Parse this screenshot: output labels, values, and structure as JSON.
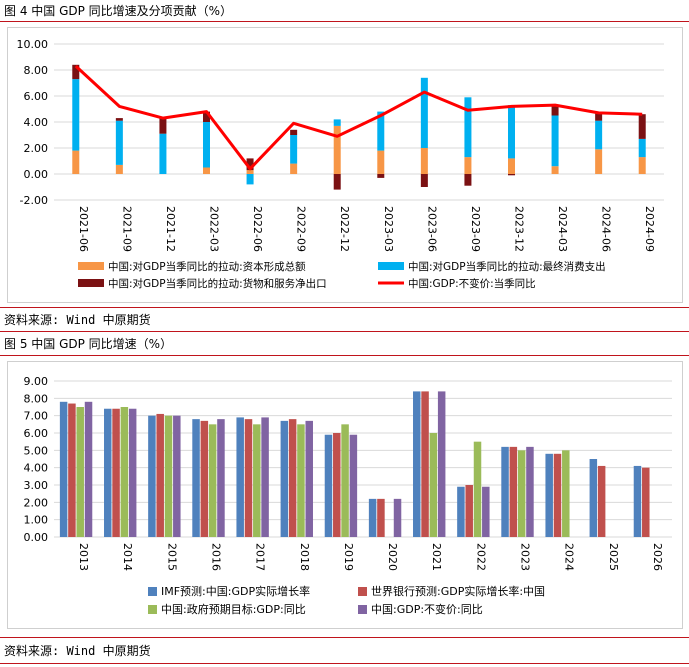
{
  "figure4": {
    "title": "图 4 中国 GDP 同比增速及分项贡献（%）",
    "source": "资料来源: Wind 中原期货"
  },
  "figure5": {
    "title": "图 5 中国 GDP 同比增速（%）",
    "source": "资料来源: Wind 中原期货"
  },
  "chart_data": [
    {
      "type": "bar",
      "stacked": true,
      "overlay_line": true,
      "title": "图 4 中国 GDP 同比增速及分项贡献（%）",
      "categories": [
        "2021-06",
        "2021-09",
        "2021-12",
        "2022-03",
        "2022-06",
        "2022-09",
        "2022-12",
        "2023-03",
        "2023-06",
        "2023-09",
        "2023-12",
        "2024-03",
        "2024-06",
        "2024-09"
      ],
      "ylim": [
        -2,
        10
      ],
      "yticks": [
        "-2.00",
        "0.00",
        "2.00",
        "4.00",
        "6.00",
        "8.00",
        "10.00"
      ],
      "grid": true,
      "legend_position": "bottom",
      "series": [
        {
          "name": "中国:对GDP当季同比的拉动:资本形成总额",
          "color": "#f79646",
          "kind": "bar",
          "values": [
            1.8,
            0.7,
            0.0,
            0.5,
            0.3,
            0.8,
            3.7,
            1.8,
            2.0,
            1.3,
            1.2,
            0.6,
            1.9,
            1.3
          ]
        },
        {
          "name": "中国:对GDP当季同比的拉动:最终消费支出",
          "color": "#00b0f0",
          "kind": "bar",
          "values": [
            5.5,
            3.4,
            3.1,
            3.5,
            -0.8,
            2.2,
            0.5,
            3.0,
            5.4,
            4.6,
            4.1,
            3.9,
            2.2,
            1.4
          ]
        },
        {
          "name": "中国:对GDP当季同比的拉动:货物和服务净出口",
          "color": "#7b1113",
          "kind": "bar",
          "values": [
            1.1,
            0.2,
            1.2,
            0.8,
            0.9,
            0.4,
            -1.2,
            -0.3,
            -1.0,
            -0.9,
            -0.1,
            0.8,
            0.6,
            1.9
          ]
        },
        {
          "name": "中国:GDP:不变价:当季同比",
          "color": "#ff0000",
          "kind": "line",
          "values": [
            8.3,
            5.2,
            4.3,
            4.8,
            0.4,
            3.9,
            2.9,
            4.5,
            6.3,
            4.9,
            5.2,
            5.3,
            4.7,
            4.6
          ]
        }
      ]
    },
    {
      "type": "bar",
      "title": "图 5 中国 GDP 同比增速（%）",
      "categories": [
        "2013",
        "2014",
        "2015",
        "2016",
        "2017",
        "2018",
        "2019",
        "2020",
        "2021",
        "2022",
        "2023",
        "2024",
        "2025",
        "2026"
      ],
      "ylim": [
        0,
        9
      ],
      "yticks": [
        "0.00",
        "1.00",
        "2.00",
        "3.00",
        "4.00",
        "5.00",
        "6.00",
        "7.00",
        "8.00",
        "9.00"
      ],
      "grid": true,
      "legend_position": "bottom",
      "series": [
        {
          "name": "IMF预测:中国:GDP实际增长率",
          "color": "#4f81bd",
          "values": [
            7.8,
            7.4,
            7.0,
            6.8,
            6.9,
            6.7,
            5.9,
            2.2,
            8.4,
            2.9,
            5.2,
            4.8,
            4.5,
            4.1
          ]
        },
        {
          "name": "世界银行预测:GDP实际增长率:中国",
          "color": "#c0504d",
          "values": [
            7.7,
            7.4,
            7.1,
            6.7,
            6.8,
            6.8,
            6.0,
            2.2,
            8.4,
            3.0,
            5.2,
            4.8,
            4.1,
            4.0
          ]
        },
        {
          "name": "中国:政府预期目标:GDP:同比",
          "color": "#9bbb59",
          "values": [
            7.5,
            7.5,
            7.0,
            6.5,
            6.5,
            6.5,
            6.5,
            null,
            6.0,
            5.5,
            5.0,
            5.0,
            null,
            null
          ]
        },
        {
          "name": "中国:GDP:不变价:同比",
          "color": "#8064a2",
          "values": [
            7.8,
            7.4,
            7.0,
            6.8,
            6.9,
            6.7,
            5.9,
            2.2,
            8.4,
            2.9,
            5.2,
            null,
            null,
            null
          ]
        }
      ]
    }
  ]
}
